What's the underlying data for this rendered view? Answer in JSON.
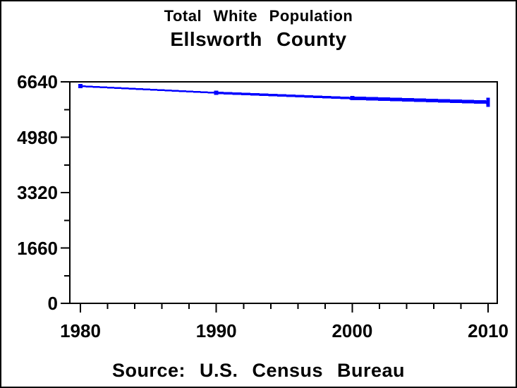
{
  "titles": {
    "subtitle": "Total White Population",
    "title": "Ellsworth County"
  },
  "footer": {
    "source_label": "Source: U.S. Census Bureau"
  },
  "colors": {
    "series": "#0000ff",
    "axis": "#000000",
    "background": "#ffffff"
  },
  "chart_data": {
    "type": "line",
    "title": "Total White Population",
    "subtitle": "Ellsworth County",
    "xlabel": "",
    "ylabel": "",
    "series": [
      {
        "name": "Total White Population",
        "color": "#0000ff",
        "x": [
          1980,
          1990,
          2000,
          2010
        ],
        "values": [
          6510,
          6310,
          6150,
          6030
        ]
      }
    ],
    "xlim": [
      1979.22,
      2010.67
    ],
    "ylim": [
      0,
      6640
    ],
    "x_major_ticks": [
      1980,
      1990,
      2000,
      2010
    ],
    "x_tick_labels": [
      "1980",
      "1990",
      "2000",
      "2010"
    ],
    "x_minor_ticks": [
      1982,
      1984,
      1986,
      1988,
      1992,
      1994,
      1996,
      1998,
      2002,
      2004,
      2006,
      2008
    ],
    "y_major_ticks": [
      0,
      1660,
      3320,
      4980,
      6640
    ],
    "y_tick_labels": [
      "0",
      "1660",
      "3320",
      "4980",
      "6640"
    ],
    "y_minor_ticks": [
      830,
      2490,
      4150,
      5810
    ],
    "grid": false,
    "legend": false,
    "marker": "square",
    "end_marker": "vertical-bar",
    "segment_stroke_widths": [
      2.5,
      3.5,
      5
    ],
    "annotation": "line thickens from 1980 to 2010"
  }
}
